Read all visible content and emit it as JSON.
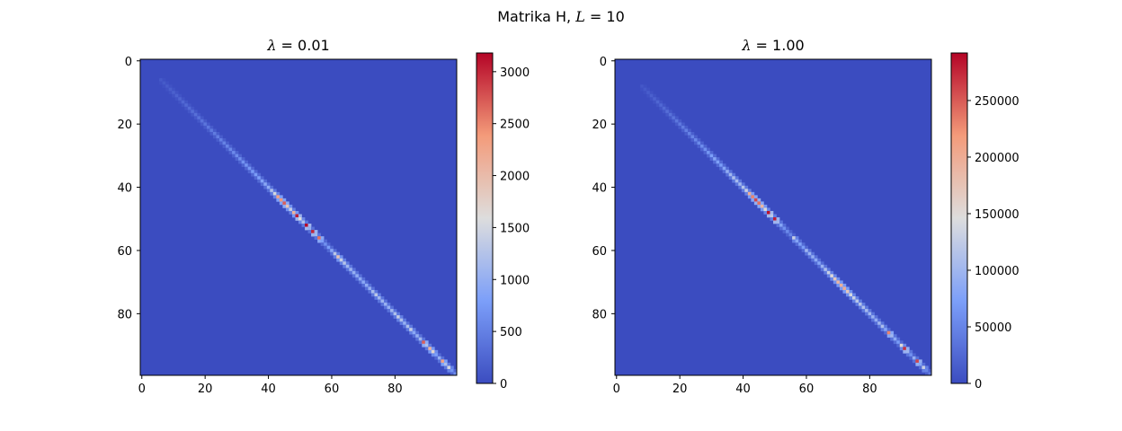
{
  "figure": {
    "suptitle_prefix": "Matrika H, ",
    "suptitle_var": "L",
    "suptitle_suffix": " = 10"
  },
  "chart_data": [
    {
      "type": "heatmap",
      "title_var": "λ",
      "title_value": " = 0.01",
      "matrix_size": 100,
      "colormap": "coolwarm",
      "x_ticks": [
        0,
        20,
        40,
        60,
        80
      ],
      "y_ticks": [
        0,
        20,
        40,
        60,
        80
      ],
      "colorbar": {
        "min": 0,
        "max": 3180,
        "ticks": [
          0,
          500,
          1000,
          1500,
          2000,
          2500,
          3000
        ]
      },
      "background_value": 0,
      "diagonal_start": 6,
      "off_diagonal_fraction": 0.35,
      "diagonal_values": [
        [
          6,
          120
        ],
        [
          10,
          200
        ],
        [
          14,
          280
        ],
        [
          18,
          360
        ],
        [
          22,
          430
        ],
        [
          26,
          520
        ],
        [
          30,
          620
        ],
        [
          34,
          720
        ],
        [
          37,
          800
        ],
        [
          40,
          950
        ],
        [
          42,
          1500
        ],
        [
          43,
          2300
        ],
        [
          44,
          2400
        ],
        [
          45,
          2700
        ],
        [
          46,
          1900
        ],
        [
          47,
          1400
        ],
        [
          48,
          2100
        ],
        [
          49,
          3050
        ],
        [
          50,
          1600
        ],
        [
          51,
          1200
        ],
        [
          52,
          3150
        ],
        [
          53,
          1000
        ],
        [
          54,
          3000
        ],
        [
          55,
          1100
        ],
        [
          56,
          2600
        ],
        [
          57,
          800
        ],
        [
          58,
          650
        ],
        [
          60,
          900
        ],
        [
          61,
          1300
        ],
        [
          62,
          1900
        ],
        [
          63,
          1400
        ],
        [
          65,
          1100
        ],
        [
          67,
          1000
        ],
        [
          70,
          900
        ],
        [
          72,
          1000
        ],
        [
          74,
          1300
        ],
        [
          75,
          1100
        ],
        [
          78,
          1000
        ],
        [
          80,
          1200
        ],
        [
          81,
          1400
        ],
        [
          83,
          1000
        ],
        [
          85,
          1400
        ],
        [
          86,
          900
        ],
        [
          88,
          1100
        ],
        [
          89,
          2700
        ],
        [
          90,
          1200
        ],
        [
          91,
          2100
        ],
        [
          92,
          1700
        ],
        [
          93,
          800
        ],
        [
          94,
          1000
        ],
        [
          95,
          2300
        ],
        [
          96,
          1200
        ],
        [
          97,
          1500
        ],
        [
          98,
          700
        ],
        [
          99,
          600
        ]
      ]
    },
    {
      "type": "heatmap",
      "title_var": "λ",
      "title_value": " = 1.00",
      "matrix_size": 100,
      "colormap": "coolwarm",
      "x_ticks": [
        0,
        20,
        40,
        60,
        80
      ],
      "y_ticks": [
        0,
        20,
        40,
        60,
        80
      ],
      "colorbar": {
        "min": 0,
        "max": 292000,
        "ticks": [
          0,
          50000,
          100000,
          150000,
          200000,
          250000
        ]
      },
      "background_value": 0,
      "diagonal_start": 8,
      "off_diagonal_fraction": 0.35,
      "diagonal_values": [
        [
          8,
          10000
        ],
        [
          12,
          20000
        ],
        [
          16,
          30000
        ],
        [
          20,
          40000
        ],
        [
          24,
          50000
        ],
        [
          28,
          60000
        ],
        [
          31,
          80000
        ],
        [
          33,
          70000
        ],
        [
          35,
          90000
        ],
        [
          37,
          110000
        ],
        [
          39,
          100000
        ],
        [
          41,
          130000
        ],
        [
          42,
          200000
        ],
        [
          43,
          230000
        ],
        [
          44,
          260000
        ],
        [
          45,
          240000
        ],
        [
          46,
          190000
        ],
        [
          47,
          150000
        ],
        [
          48,
          285000
        ],
        [
          49,
          120000
        ],
        [
          50,
          280000
        ],
        [
          51,
          100000
        ],
        [
          53,
          60000
        ],
        [
          55,
          50000
        ],
        [
          56,
          130000
        ],
        [
          57,
          80000
        ],
        [
          59,
          70000
        ],
        [
          60,
          100000
        ],
        [
          62,
          90000
        ],
        [
          64,
          80000
        ],
        [
          66,
          110000
        ],
        [
          68,
          150000
        ],
        [
          69,
          170000
        ],
        [
          70,
          190000
        ],
        [
          72,
          200000
        ],
        [
          73,
          170000
        ],
        [
          74,
          140000
        ],
        [
          76,
          120000
        ],
        [
          78,
          110000
        ],
        [
          80,
          100000
        ],
        [
          82,
          90000
        ],
        [
          84,
          110000
        ],
        [
          85,
          80000
        ],
        [
          86,
          230000
        ],
        [
          87,
          100000
        ],
        [
          89,
          70000
        ],
        [
          90,
          150000
        ],
        [
          91,
          270000
        ],
        [
          92,
          100000
        ],
        [
          93,
          60000
        ],
        [
          94,
          90000
        ],
        [
          95,
          260000
        ],
        [
          96,
          80000
        ],
        [
          97,
          130000
        ],
        [
          98,
          50000
        ],
        [
          99,
          40000
        ]
      ]
    }
  ]
}
